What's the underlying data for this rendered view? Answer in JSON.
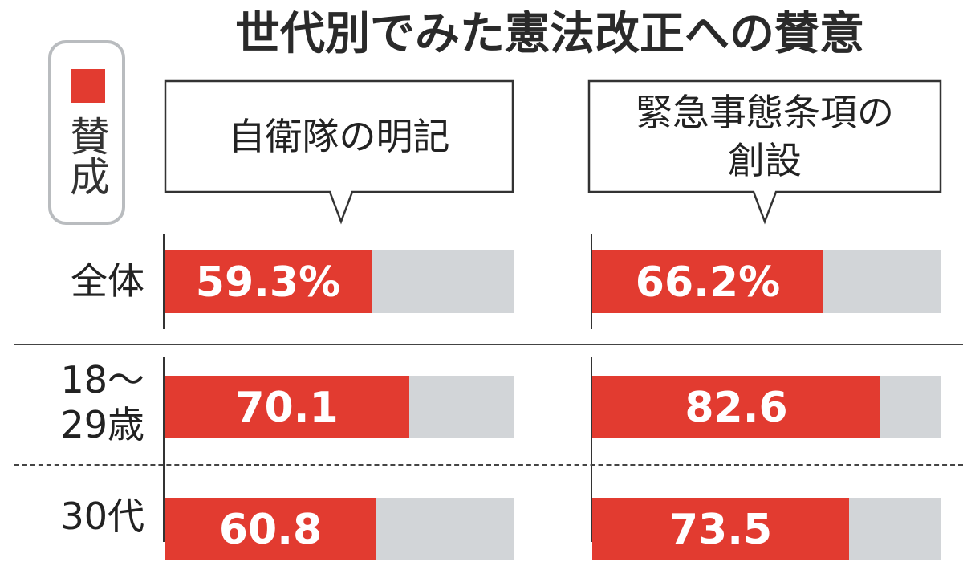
{
  "title": "世代別でみた憲法改正への賛意",
  "legend": {
    "label": "賛成",
    "color": "#e23b30"
  },
  "chart_data": {
    "type": "bar",
    "orientation": "horizontal",
    "stacked_to_100": true,
    "title": "世代別でみた憲法改正への賛意",
    "unit": "%",
    "colors": {
      "agree": "#e23b30",
      "remainder": "#d2d5d8"
    },
    "categories": [
      "全体",
      "18～29歳",
      "30代"
    ],
    "category_lines": [
      [
        "全体"
      ],
      [
        "18～",
        "29歳"
      ],
      [
        "30代"
      ]
    ],
    "series": [
      {
        "name": "自衛隊の明記",
        "values": [
          59.3,
          70.1,
          60.8
        ],
        "labels": [
          "59.3%",
          "70.1",
          "60.8"
        ]
      },
      {
        "name": "緊急事態条項の創設",
        "name_lines": [
          "緊急事態条項の",
          "創設"
        ],
        "values": [
          66.2,
          82.6,
          73.5
        ],
        "labels": [
          "66.2%",
          "82.6",
          "73.5"
        ]
      }
    ],
    "xlim": [
      0,
      100
    ]
  }
}
